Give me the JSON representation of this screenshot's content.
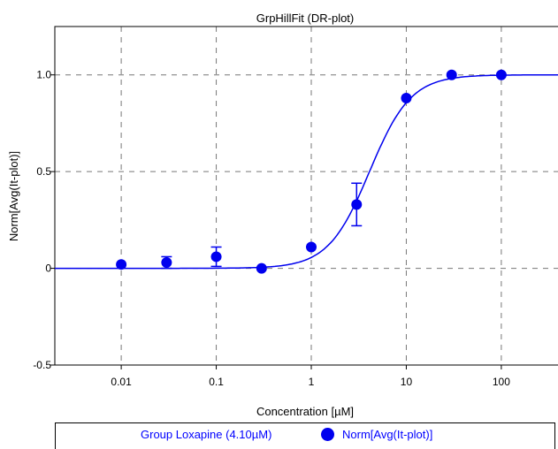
{
  "chart_data": {
    "type": "scatter",
    "title": "GrpHillFit (DR-plot)",
    "xlabel": "Concentration [µM]",
    "ylabel": "Norm[Avg(It-plot)]",
    "x_scale": "log",
    "xlim": [
      0.002,
      500
    ],
    "ylim": [
      -0.5,
      1.25
    ],
    "grid": true,
    "x_ticks": [
      {
        "value": 0.01,
        "label": "0.01"
      },
      {
        "value": 0.1,
        "label": "0.1"
      },
      {
        "value": 1,
        "label": "1"
      },
      {
        "value": 10,
        "label": "10"
      },
      {
        "value": 100,
        "label": "100"
      }
    ],
    "y_ticks": [
      {
        "value": -0.5,
        "label": "-0.5"
      },
      {
        "value": 0,
        "label": "0"
      },
      {
        "value": 0.5,
        "label": "0.5"
      },
      {
        "value": 1.0,
        "label": "1.0"
      }
    ],
    "series": [
      {
        "name": "Norm[Avg(It-plot)]",
        "color": "#0000ee",
        "points": [
          {
            "x": 0.01,
            "y": 0.02,
            "err": 0
          },
          {
            "x": 0.03,
            "y": 0.03,
            "err": 0.03
          },
          {
            "x": 0.1,
            "y": 0.06,
            "err": 0.05
          },
          {
            "x": 0.3,
            "y": 0.0,
            "err": 0
          },
          {
            "x": 1,
            "y": 0.11,
            "err": 0
          },
          {
            "x": 3,
            "y": 0.33,
            "err": 0.11
          },
          {
            "x": 10,
            "y": 0.88,
            "err": 0
          },
          {
            "x": 30,
            "y": 1.0,
            "err": 0
          },
          {
            "x": 100,
            "y": 1.0,
            "err": 0
          }
        ]
      }
    ],
    "fit": {
      "model": "hill",
      "ec50": 4.1,
      "hill_slope": 2.0,
      "bottom": 0,
      "top": 1,
      "color": "#0000ee"
    },
    "legend": {
      "fit_label": "Group Loxapine (4.10µM)",
      "series_label": "Norm[Avg(It-plot)]",
      "position": "bottom"
    }
  }
}
